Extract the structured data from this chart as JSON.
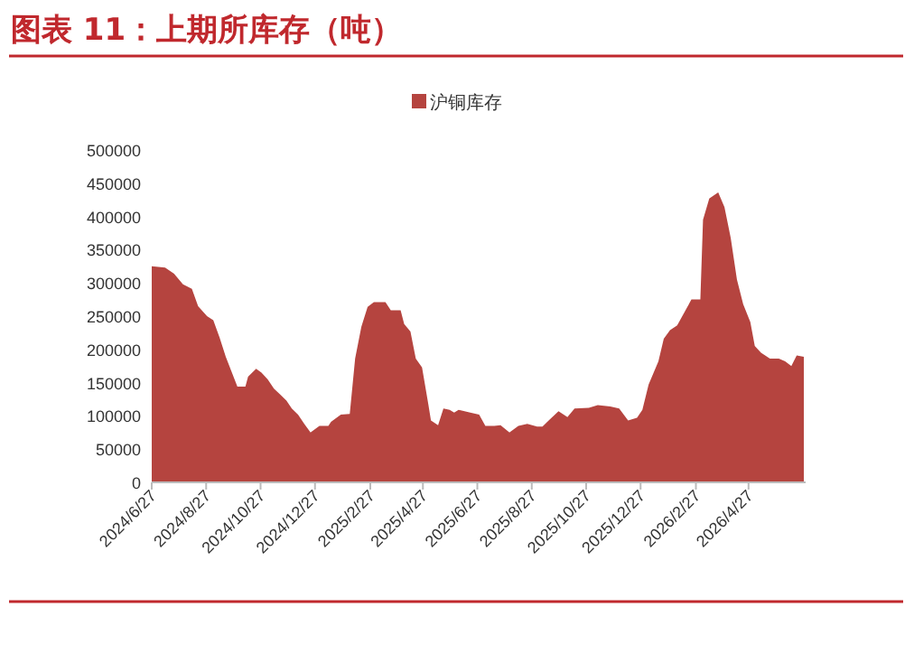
{
  "chart_data": {
    "type": "area",
    "title": "图表 11：上期所库存（吨）",
    "legend": "top",
    "x": [
      "2024-06-27",
      "2024-07-12",
      "2024-07-22",
      "2024-08-01",
      "2024-08-11",
      "2024-08-18",
      "2024-08-28",
      "2024-09-04",
      "2024-09-11",
      "2024-09-18",
      "2024-09-24",
      "2024-10-01",
      "2024-10-10",
      "2024-10-13",
      "2024-10-22",
      "2024-10-28",
      "2024-11-04",
      "2024-11-11",
      "2024-11-18",
      "2024-11-25",
      "2024-12-01",
      "2024-12-08",
      "2024-12-15",
      "2024-12-22",
      "2025-01-01",
      "2025-01-11",
      "2025-01-14",
      "2025-01-25",
      "2025-02-04",
      "2025-02-10",
      "2025-02-17",
      "2025-02-24",
      "2025-03-03",
      "2025-03-16",
      "2025-03-22",
      "2025-04-02",
      "2025-04-06",
      "2025-04-13",
      "2025-04-19",
      "2025-04-26",
      "2025-05-03",
      "2025-05-06",
      "2025-05-14",
      "2025-05-20",
      "2025-05-27",
      "2025-06-01",
      "2025-06-06",
      "2025-06-19",
      "2025-06-29",
      "2025-07-06",
      "2025-07-16",
      "2025-07-23",
      "2025-08-02",
      "2025-08-12",
      "2025-08-22",
      "2025-09-02",
      "2025-09-08",
      "2025-09-15",
      "2025-09-26",
      "2025-10-06",
      "2025-10-14",
      "2025-10-30",
      "2025-11-09",
      "2025-11-23",
      "2025-12-03",
      "2025-12-13",
      "2025-12-23",
      "2025-12-29",
      "2026-01-05",
      "2026-01-16",
      "2026-01-22",
      "2026-01-29",
      "2026-02-06",
      "2026-02-13",
      "2026-02-22",
      "2026-03-04",
      "2026-03-07",
      "2026-03-14",
      "2026-03-24",
      "2026-03-31",
      "2026-04-07",
      "2026-04-14",
      "2026-04-21",
      "2026-04-29",
      "2026-05-04",
      "2026-05-11",
      "2026-05-21",
      "2026-05-31",
      "2026-06-07",
      "2026-06-14",
      "2026-06-20",
      "2026-06-28"
    ],
    "series": [
      {
        "name": "沪铜库存",
        "color": "#b5443f",
        "values": [
          325000,
          323000,
          314000,
          298000,
          291000,
          265000,
          250000,
          244000,
          218000,
          189000,
          168000,
          144000,
          144000,
          159000,
          171000,
          165000,
          155000,
          141000,
          132000,
          123000,
          111000,
          102000,
          88000,
          75000,
          85000,
          85000,
          91000,
          102000,
          103000,
          186000,
          234000,
          264000,
          271000,
          271000,
          259000,
          259000,
          238000,
          227000,
          186000,
          173000,
          118000,
          93000,
          86000,
          111000,
          109000,
          105000,
          109000,
          105000,
          102000,
          85000,
          85000,
          86000,
          75000,
          85000,
          88000,
          84000,
          84000,
          93000,
          107000,
          98000,
          111000,
          112000,
          116000,
          114000,
          111000,
          93000,
          97000,
          109000,
          147000,
          182000,
          216000,
          229000,
          236000,
          253000,
          275000,
          275000,
          395000,
          427000,
          436000,
          414000,
          368000,
          305000,
          268000,
          241000,
          205000,
          195000,
          186000,
          186000,
          182000,
          175000,
          191000,
          189000
        ]
      }
    ],
    "xlim": [
      "2024-06-27",
      "2026-06-30"
    ],
    "xticks": [
      {
        "value": "2024-06-27",
        "label": "2024/6/27"
      },
      {
        "value": "2024-08-27",
        "label": "2024/8/27"
      },
      {
        "value": "2024-10-27",
        "label": "2024/10/27"
      },
      {
        "value": "2024-12-27",
        "label": "2024/12/27"
      },
      {
        "value": "2025-02-27",
        "label": "2025/2/27"
      },
      {
        "value": "2025-04-27",
        "label": "2025/4/27"
      },
      {
        "value": "2025-06-27",
        "label": "2025/6/27"
      },
      {
        "value": "2025-08-27",
        "label": "2025/8/27"
      },
      {
        "value": "2025-10-27",
        "label": "2025/10/27"
      },
      {
        "value": "2025-12-27",
        "label": "2025/12/27"
      },
      {
        "value": "2026-02-27",
        "label": "2026/2/27"
      },
      {
        "value": "2026-04-27",
        "label": "2026/4/27"
      }
    ],
    "ylim": [
      0,
      500000
    ],
    "yticks": [
      0,
      50000,
      100000,
      150000,
      200000,
      250000,
      300000,
      350000,
      400000,
      450000,
      500000
    ],
    "grid": false
  }
}
